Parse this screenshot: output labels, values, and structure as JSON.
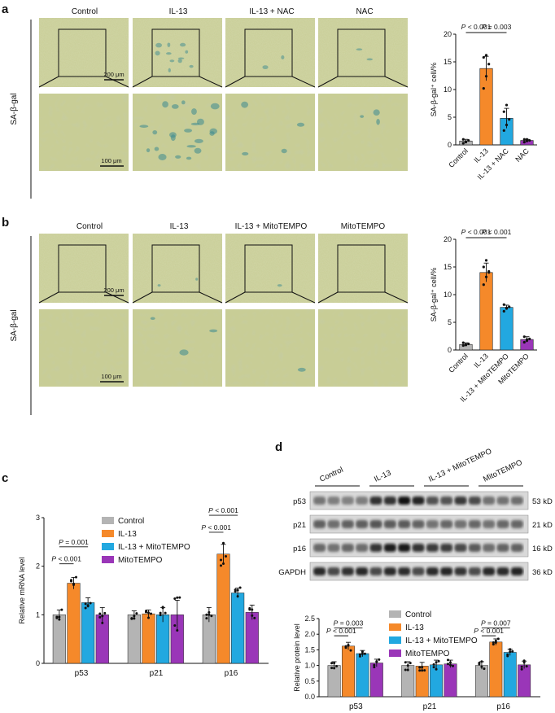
{
  "panels": {
    "a": {
      "letter": "a",
      "side_label": "SA-β-gal",
      "columns": [
        "Control",
        "IL-13",
        "IL-13 + NAC",
        "NAC"
      ],
      "scale_top": "200 μm",
      "scale_bottom": "100 μm",
      "micrograph_colors": {
        "background": "#c8cd96",
        "stain": "#3c8a90"
      }
    },
    "b": {
      "letter": "b",
      "side_label": "SA-β-gal",
      "columns": [
        "Control",
        "IL-13",
        "IL-13 + MitoTEMPO",
        "MitoTEMPO"
      ],
      "scale_top": "200 μm",
      "scale_bottom": "100 μm"
    },
    "c": {
      "letter": "c"
    },
    "d": {
      "letter": "d",
      "blot_groups": [
        "Control",
        "IL-13",
        "IL-13 + MitoTEMPO",
        "MitoTEMPO"
      ],
      "blot_rows": [
        {
          "name": "p53",
          "size": "53 kD"
        },
        {
          "name": "p21",
          "size": "21 kD"
        },
        {
          "name": "p16",
          "size": "16 kD"
        },
        {
          "name": "GAPDH",
          "size": "36 kD"
        }
      ]
    }
  },
  "colors": {
    "control": "#b4b4b4",
    "il13": "#f5892a",
    "treat": "#22a8e0",
    "drug": "#9a36b8"
  },
  "chart_data": [
    {
      "id": "a-chart",
      "type": "bar",
      "categories": [
        "Control",
        "IL-13",
        "IL-13 + NAC",
        "NAC"
      ],
      "values": [
        0.7,
        13.8,
        4.8,
        0.8
      ],
      "errors": [
        0.3,
        2.2,
        1.8,
        0.2
      ],
      "points": [
        [
          0.3,
          0.5,
          0.8,
          1.0,
          0.6
        ],
        [
          10.2,
          12.4,
          14.6,
          15.8,
          16.2
        ],
        [
          2.6,
          3.6,
          4.6,
          6.0,
          7.2
        ],
        [
          0.5,
          0.7,
          0.8,
          1.0,
          1.0
        ]
      ],
      "ylabel": "SA-β-gal⁺ cell/%",
      "ylim": [
        0,
        20
      ],
      "yticks": [
        0,
        5,
        10,
        15,
        20
      ],
      "brackets": [
        {
          "from": 0,
          "to": 1,
          "text": "P < 0.001"
        },
        {
          "from": 1,
          "to": 2,
          "text": "P = 0.003"
        }
      ]
    },
    {
      "id": "b-chart",
      "type": "bar",
      "categories": [
        "Control",
        "IL-13",
        "IL-13 + MitoTEMPO",
        "MitoTEMPO"
      ],
      "values": [
        1.0,
        14.0,
        7.7,
        1.9
      ],
      "errors": [
        0.3,
        1.7,
        0.4,
        0.5
      ],
      "points": [
        [
          0.8,
          1.0,
          1.1,
          1.3,
          0.9
        ],
        [
          11.8,
          13.2,
          14.2,
          15.0,
          16.2,
          14.0
        ],
        [
          7.0,
          7.5,
          7.8,
          8.2,
          7.6
        ],
        [
          1.4,
          1.7,
          2.0,
          2.4,
          1.9
        ]
      ],
      "ylabel": "SA-β-gal⁺ cell/%",
      "ylim": [
        0,
        20
      ],
      "yticks": [
        0,
        5,
        10,
        15,
        20
      ],
      "brackets": [
        {
          "from": 0,
          "to": 1,
          "text": "P < 0.001"
        },
        {
          "from": 1,
          "to": 2,
          "text": "P < 0.001"
        }
      ]
    },
    {
      "id": "c-chart",
      "type": "bar",
      "categories": [
        "p53",
        "p21",
        "p16"
      ],
      "series": [
        {
          "name": "Control",
          "values": [
            1.0,
            1.0,
            1.0
          ],
          "errors": [
            0.1,
            0.08,
            0.15
          ]
        },
        {
          "name": "IL-13",
          "values": [
            1.65,
            1.02,
            2.25
          ],
          "errors": [
            0.12,
            0.08,
            0.2
          ]
        },
        {
          "name": "IL-13 + MitoTEMPO",
          "values": [
            1.25,
            1.0,
            1.45
          ],
          "errors": [
            0.1,
            0.15,
            0.1
          ]
        },
        {
          "name": "MitoTEMPO",
          "values": [
            1.0,
            1.0,
            1.05
          ],
          "errors": [
            0.15,
            0.3,
            0.15
          ]
        }
      ],
      "ylabel": "Relative mRNA level",
      "ylim": [
        0,
        3
      ],
      "yticks": [
        0,
        1,
        2,
        3
      ],
      "brackets": [
        {
          "group": 0,
          "from": 0,
          "to": 1,
          "text": "P < 0.001",
          "level": 2.05
        },
        {
          "group": 0,
          "from": 0,
          "to": 2,
          "text": "P = 0.001",
          "level": 2.4
        },
        {
          "group": 2,
          "from": 0,
          "to": 1,
          "text": "P < 0.001",
          "level": 2.7
        },
        {
          "group": 2,
          "from": 0,
          "to": 2,
          "text": "P < 0.001",
          "level": 3.05
        }
      ]
    },
    {
      "id": "d-chart",
      "type": "bar",
      "categories": [
        "p53",
        "p21",
        "p16"
      ],
      "series": [
        {
          "name": "Control",
          "values": [
            1.0,
            1.0,
            1.0
          ],
          "errors": [
            0.12,
            0.12,
            0.12
          ]
        },
        {
          "name": "IL-13",
          "values": [
            1.62,
            0.98,
            1.75
          ],
          "errors": [
            0.12,
            0.12,
            0.1
          ]
        },
        {
          "name": "IL-13 + MitoTEMPO",
          "values": [
            1.38,
            1.02,
            1.42
          ],
          "errors": [
            0.1,
            0.15,
            0.1
          ]
        },
        {
          "name": "MitoTEMPO",
          "values": [
            1.08,
            1.05,
            1.02
          ],
          "errors": [
            0.12,
            0.12,
            0.12
          ]
        }
      ],
      "ylabel": "Relative protein  level",
      "ylim": [
        0,
        2.5
      ],
      "yticks": [
        0,
        0.5,
        1.0,
        1.5,
        2.0,
        2.5
      ],
      "brackets": [
        {
          "group": 0,
          "from": 0,
          "to": 1,
          "text": "P < 0.001",
          "level": 1.95
        },
        {
          "group": 0,
          "from": 0,
          "to": 2,
          "text": "P = 0.003",
          "level": 2.2
        },
        {
          "group": 2,
          "from": 0,
          "to": 1,
          "text": "P < 0.001",
          "level": 1.95
        },
        {
          "group": 2,
          "from": 0,
          "to": 2,
          "text": "P = 0.007",
          "level": 2.2
        }
      ]
    }
  ]
}
